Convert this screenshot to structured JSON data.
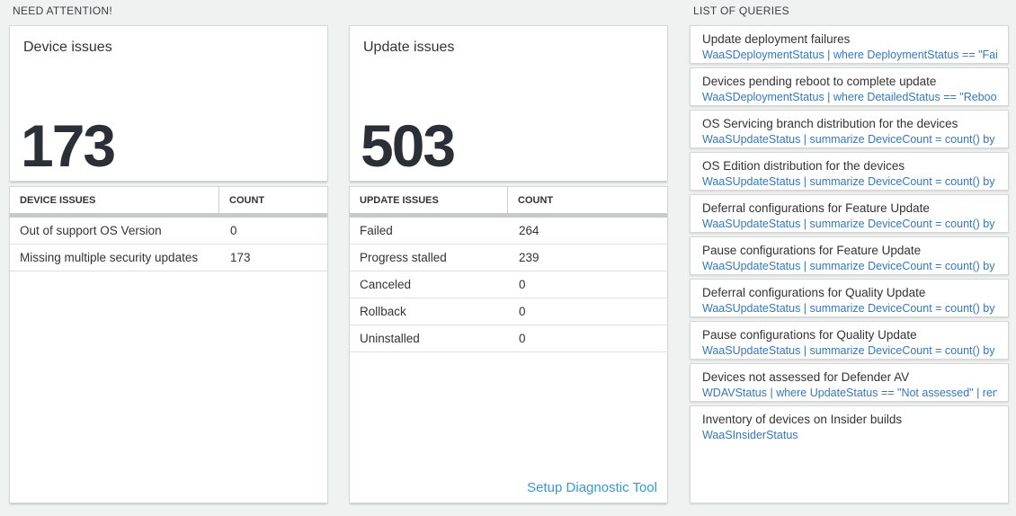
{
  "attention": {
    "header": "NEED ATTENTION!",
    "device_card": {
      "title": "Device issues",
      "count": "173",
      "table": {
        "col1": "DEVICE ISSUES",
        "col2": "COUNT",
        "rows": [
          {
            "label": "Out of support OS Version",
            "count": "0"
          },
          {
            "label": "Missing multiple security updates",
            "count": "173"
          }
        ]
      }
    },
    "update_card": {
      "title": "Update issues",
      "count": "503",
      "table": {
        "col1": "UPDATE ISSUES",
        "col2": "COUNT",
        "rows": [
          {
            "label": "Failed",
            "count": "264"
          },
          {
            "label": "Progress stalled",
            "count": "239"
          },
          {
            "label": "Canceled",
            "count": "0"
          },
          {
            "label": "Rollback",
            "count": "0"
          },
          {
            "label": "Uninstalled",
            "count": "0"
          }
        ]
      },
      "footer_link": "Setup Diagnostic Tool"
    }
  },
  "queries": {
    "header": "LIST OF QUERIES",
    "items": [
      {
        "title": "Update deployment failures",
        "query": "WaaSDeploymentStatus | where DeploymentStatus == \"Failed\" |..."
      },
      {
        "title": "Devices pending reboot to complete update",
        "query": "WaaSDeploymentStatus | where DetailedStatus == \"Reboot pend..."
      },
      {
        "title": "OS Servicing branch distribution for the devices",
        "query": "WaaSUpdateStatus | summarize DeviceCount = count() by OSSer..."
      },
      {
        "title": "OS Edition distribution for the devices",
        "query": "WaaSUpdateStatus | summarize DeviceCount = count() by OSEdit..."
      },
      {
        "title": "Deferral configurations for Feature Update",
        "query": "WaaSUpdateStatus | summarize DeviceCount = count() by Featur..."
      },
      {
        "title": "Pause configurations for Feature Update",
        "query": "WaaSUpdateStatus | summarize DeviceCount = count() by Featur..."
      },
      {
        "title": "Deferral configurations for Quality Update",
        "query": "WaaSUpdateStatus | summarize DeviceCount = count() by Qualit..."
      },
      {
        "title": "Pause configurations for Quality Update",
        "query": "WaaSUpdateStatus | summarize DeviceCount = count() by Qualit..."
      },
      {
        "title": "Devices not assessed for Defender AV",
        "query": "WDAVStatus | where UpdateStatus == \"Not assessed\" | render ta..."
      },
      {
        "title": "Inventory of devices on Insider builds",
        "query": "WaaSInsiderStatus"
      }
    ]
  },
  "colors": {
    "page_background": "#f0f1f1",
    "query_text_blue": "#3577bd",
    "footer_link_blue": "#3399d8",
    "big_number_color": "#2b2f36",
    "thick_divider": "#c7c9cb"
  }
}
